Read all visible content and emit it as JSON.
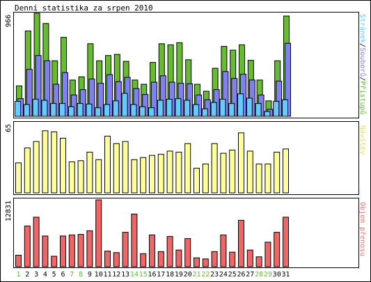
{
  "title": "Denní statistika za srpen 2010",
  "colors": {
    "pristupy": "#66bb33",
    "soubory": "#8080ee",
    "stranky": "#66ccff",
    "navstevy": "#ffff99",
    "objem": "#ee6666",
    "label_green": "#66bb33",
    "label_yellow": "#dddd66",
    "label_red": "#ee7777",
    "weekday_day": "#000000",
    "weekend_day": "#66bb33"
  },
  "chart_data": [
    {
      "type": "bar",
      "name": "top",
      "ymax_label": "966",
      "ylim": [
        0,
        966
      ],
      "right_label_parts": [
        "Stránek",
        "/",
        "Souborů",
        "/",
        "Přístupů"
      ],
      "categories": [
        "1",
        "2",
        "3",
        "4",
        "5",
        "6",
        "7",
        "8",
        "9",
        "10",
        "11",
        "12",
        "13",
        "14",
        "15",
        "16",
        "17",
        "18",
        "19",
        "20",
        "21",
        "22",
        "23",
        "24",
        "25",
        "26",
        "27",
        "28",
        "29",
        "30",
        "31"
      ],
      "series": [
        {
          "key": "pristupy",
          "values": [
            285,
            800,
            966,
            870,
            520,
            740,
            340,
            370,
            680,
            520,
            570,
            580,
            515,
            340,
            300,
            505,
            680,
            670,
            690,
            530,
            300,
            235,
            450,
            655,
            620,
            670,
            525,
            340,
            145,
            520,
            940
          ]
        },
        {
          "key": "soubory",
          "values": [
            165,
            440,
            570,
            520,
            300,
            410,
            200,
            250,
            350,
            310,
            390,
            325,
            365,
            260,
            205,
            320,
            380,
            320,
            310,
            305,
            200,
            155,
            250,
            420,
            355,
            395,
            340,
            200,
            65,
            330,
            685
          ]
        },
        {
          "key": "stranky",
          "values": [
            140,
            110,
            160,
            150,
            120,
            120,
            90,
            120,
            115,
            80,
            110,
            145,
            215,
            110,
            90,
            80,
            150,
            160,
            165,
            150,
            110,
            70,
            130,
            160,
            120,
            210,
            170,
            120,
            45,
            140,
            155
          ]
        }
      ],
      "weekend_days": [
        "1",
        "7",
        "8",
        "14",
        "15",
        "21",
        "22",
        "28",
        "29"
      ]
    },
    {
      "type": "bar",
      "name": "middle",
      "ymax_label": "65",
      "ylim": [
        0,
        65
      ],
      "right_label": "Návštěv",
      "categories": [
        "1",
        "2",
        "3",
        "4",
        "5",
        "6",
        "7",
        "8",
        "9",
        "10",
        "11",
        "12",
        "13",
        "14",
        "15",
        "16",
        "17",
        "18",
        "19",
        "20",
        "21",
        "22",
        "23",
        "24",
        "25",
        "26",
        "27",
        "28",
        "29",
        "30",
        "31"
      ],
      "values": [
        28,
        42,
        48,
        58,
        57,
        51,
        29,
        30,
        38,
        31,
        53,
        46,
        48,
        31,
        33,
        35,
        36,
        39,
        38,
        46,
        23,
        27,
        46,
        37,
        40,
        56,
        39,
        27,
        27,
        38,
        41
      ]
    },
    {
      "type": "bar",
      "name": "bottom",
      "ymax_label": "12831",
      "ylim": [
        0,
        12831
      ],
      "right_label": "Objem přenosu",
      "categories": [
        "1",
        "2",
        "3",
        "4",
        "5",
        "6",
        "7",
        "8",
        "9",
        "10",
        "11",
        "12",
        "13",
        "14",
        "15",
        "16",
        "17",
        "18",
        "19",
        "20",
        "21",
        "22",
        "23",
        "24",
        "25",
        "26",
        "27",
        "28",
        "29",
        "30",
        "31"
      ],
      "values": [
        2200,
        7800,
        9500,
        5900,
        2000,
        5900,
        6100,
        6200,
        6900,
        12831,
        3000,
        2700,
        6600,
        10100,
        2500,
        6100,
        2900,
        5800,
        3200,
        5400,
        1700,
        1500,
        2900,
        6100,
        2800,
        8900,
        3200,
        1900,
        4700,
        6600,
        9500
      ]
    }
  ]
}
